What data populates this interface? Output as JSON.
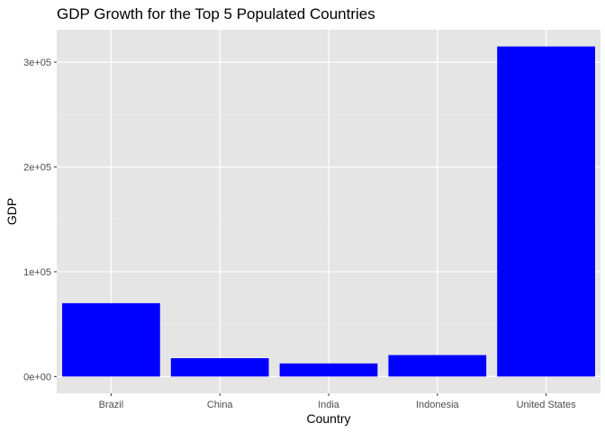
{
  "chart_data": {
    "type": "bar",
    "title": "GDP Growth for the Top 5 Populated Countries",
    "xlabel": "Country",
    "ylabel": "GDP",
    "categories": [
      "Brazil",
      "China",
      "India",
      "Indonesia",
      "United States"
    ],
    "values": [
      70000,
      17500,
      12500,
      20500,
      315000
    ],
    "ylim": [
      -16000,
      331000
    ],
    "yticks": [
      0,
      100000,
      200000,
      300000
    ],
    "ytick_labels": [
      "0e+00",
      "1e+05",
      "2e+05",
      "3e+05"
    ],
    "grid": true,
    "legend": "none",
    "colors": {
      "bar": "#0000ff",
      "panel": "#e5e5e5",
      "grid_major": "#ffffff",
      "grid_minor": "#f2f2f2"
    }
  }
}
